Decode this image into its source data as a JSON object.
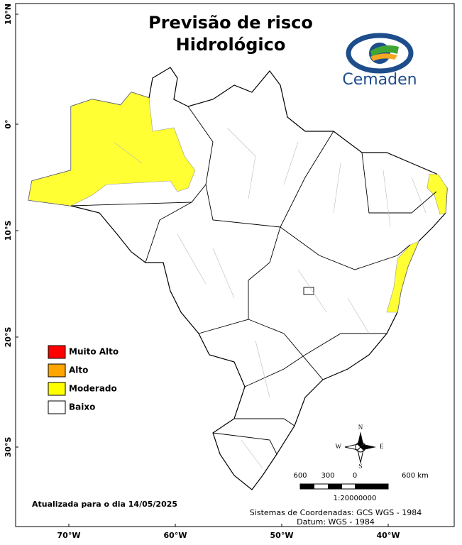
{
  "title": [
    "Previsão de risco",
    "Hidrológico"
  ],
  "logo": "Cemaden",
  "legend": [
    {
      "label": "Muito Alto",
      "color": "#ff0000"
    },
    {
      "label": "Alto",
      "color": "#ffa500"
    },
    {
      "label": "Moderado",
      "color": "#ffff00"
    },
    {
      "label": "Baixo",
      "color": "#ffffff"
    }
  ],
  "latitude_labels": [
    "10°N",
    "0°",
    "10°S",
    "20°S",
    "30°S"
  ],
  "longitude_labels": [
    "70°W",
    "60°W",
    "50°W",
    "40°W"
  ],
  "compass": [
    "N",
    "E",
    "S",
    "W"
  ],
  "scale_bar": {
    "labels": [
      "600",
      "300",
      "0",
      "600 km"
    ],
    "ratio": "1:20000000"
  },
  "updated": "Atualizada para o dia 14/05/2025",
  "coordinate_system": [
    "Sistemas de Coordenadas: GCS WGS - 1984",
    "Datum: WGS - 1984"
  ]
}
